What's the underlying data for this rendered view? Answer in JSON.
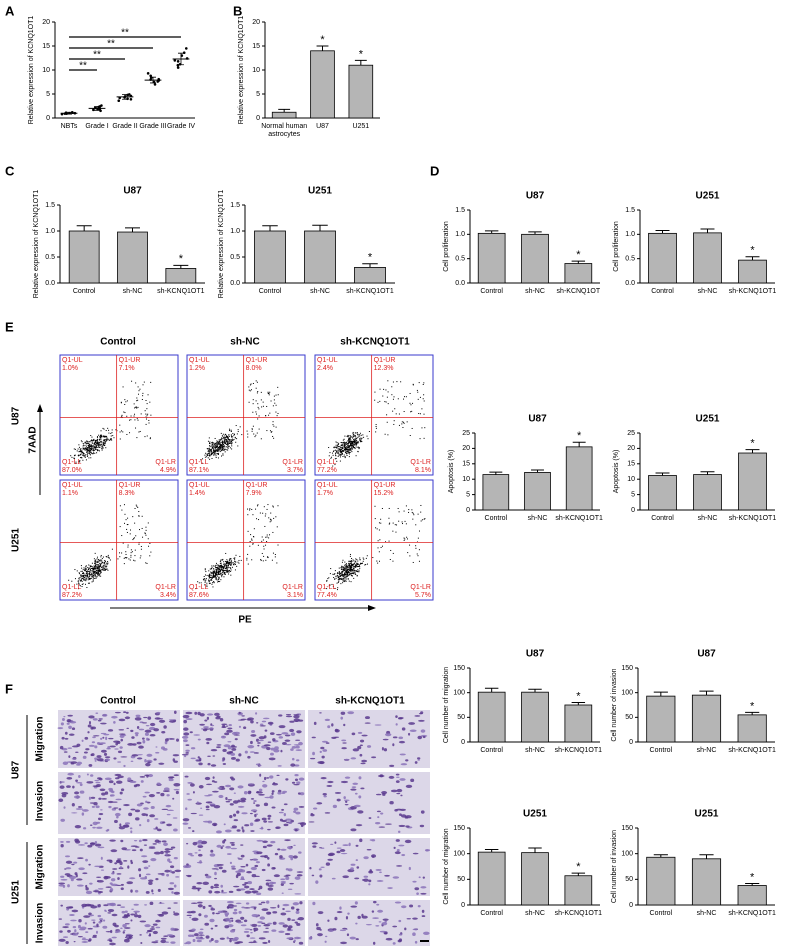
{
  "panels": [
    "A",
    "B",
    "C",
    "D",
    "E",
    "F"
  ],
  "chart_data": [
    {
      "type": "dot",
      "categories": [
        "NBTs",
        "Grade I",
        "Grade II",
        "Grade III",
        "Grade IV"
      ],
      "values": [
        1,
        2,
        4.4,
        7.9,
        12.3
      ],
      "errors": [
        0.2,
        0.4,
        0.5,
        0.6,
        1.2
      ],
      "points": [
        [
          0.8,
          1.0,
          1.1,
          0.9,
          1.2,
          1.0,
          0.9,
          1.1
        ],
        [
          1.5,
          1.8,
          2.0,
          2.3,
          2.6,
          1.7,
          2.1,
          2.4,
          1.9
        ],
        [
          3.6,
          4.0,
          4.3,
          4.6,
          4.9,
          4.2,
          4.5,
          3.9,
          4.8
        ],
        [
          7.0,
          7.5,
          7.8,
          8.1,
          8.4,
          8.8,
          7.6,
          8.0,
          9.3
        ],
        [
          10.5,
          11.2,
          11.8,
          12.4,
          13.0,
          13.6,
          14.5,
          12.0,
          11.0
        ]
      ],
      "ylim": [
        0,
        20
      ],
      "yticks": [
        0,
        5,
        10,
        15,
        20
      ],
      "ylabel": "Relative expression of KCNQ1OT1",
      "comparisons": [
        {
          "from": "NBTs",
          "to": "Grade I",
          "text": "**"
        },
        {
          "from": "NBTs",
          "to": "Grade II",
          "text": "**"
        },
        {
          "from": "NBTs",
          "to": "Grade III",
          "text": "**"
        },
        {
          "from": "NBTs",
          "to": "Grade IV",
          "text": "**"
        }
      ],
      "color": "#000000"
    },
    {
      "type": "bar",
      "categories": [
        "Normal human astrocytes",
        "U87",
        "U251"
      ],
      "values": [
        1.2,
        14,
        11
      ],
      "errors": [
        0.6,
        1,
        1
      ],
      "ylim": [
        0,
        20
      ],
      "yticks": [
        0,
        5,
        10,
        15,
        20
      ],
      "ylabel": "Relative expression of KCNQ1OT1",
      "annotations": [
        {
          "at": "U87",
          "text": "*"
        },
        {
          "at": "U251",
          "text": "*"
        }
      ],
      "color": "#b5b5b5"
    },
    {
      "type": "bar",
      "title": "U87",
      "categories": [
        "Control",
        "sh-NC",
        "sh-KCNQ1OT1"
      ],
      "values": [
        1.0,
        0.98,
        0.28
      ],
      "errors": [
        0.1,
        0.08,
        0.06
      ],
      "ylim": [
        0,
        1.5
      ],
      "yticks": [
        {
          "value": 0,
          "label": "0.0"
        },
        0.5,
        {
          "value": 1,
          "label": "1.0"
        },
        1.5
      ],
      "ylabel": "Relative expression of KCNQ1OT1",
      "annotations": [
        {
          "at": "sh-KCNQ1OT1",
          "text": "*"
        }
      ],
      "color": "#b5b5b5"
    },
    {
      "type": "bar",
      "title": "U251",
      "categories": [
        "Control",
        "sh-NC",
        "sh-KCNQ1OT1"
      ],
      "values": [
        1.0,
        1.0,
        0.3
      ],
      "errors": [
        0.1,
        0.11,
        0.07
      ],
      "ylim": [
        0,
        1.5
      ],
      "yticks": [
        {
          "value": 0,
          "label": "0.0"
        },
        0.5,
        {
          "value": 1,
          "label": "1.0"
        },
        1.5
      ],
      "ylabel": "Relative expression of KCNQ1OT1",
      "annotations": [
        {
          "at": "sh-KCNQ1OT1",
          "text": "*"
        }
      ],
      "color": "#b5b5b5"
    },
    {
      "type": "bar",
      "title": "U87",
      "categories": [
        "Control",
        "sh-NC",
        "sh-KCNQ1OT"
      ],
      "values": [
        1.02,
        1.0,
        0.4
      ],
      "errors": [
        0.05,
        0.05,
        0.05
      ],
      "ylim": [
        0,
        1.5
      ],
      "yticks": [
        {
          "value": 0,
          "label": "0.0"
        },
        0.5,
        {
          "value": 1,
          "label": "1.0"
        },
        1.5
      ],
      "ylabel": "Cell proliferation",
      "annotations": [
        {
          "at": "sh-KCNQ1OT",
          "text": "*"
        }
      ],
      "color": "#b5b5b5"
    },
    {
      "type": "bar",
      "title": "U251",
      "categories": [
        "Control",
        "sh-NC",
        "sh-KCNQ1OT1"
      ],
      "values": [
        1.02,
        1.03,
        0.47
      ],
      "errors": [
        0.06,
        0.08,
        0.07
      ],
      "ylim": [
        0,
        1.5
      ],
      "yticks": [
        {
          "value": 0,
          "label": "0.0"
        },
        0.5,
        {
          "value": 1,
          "label": "1.0"
        },
        1.5
      ],
      "ylabel": "Cell proliferation",
      "annotations": [
        {
          "at": "sh-KCNQ1OT1",
          "text": "*"
        }
      ],
      "color": "#b5b5b5"
    },
    {
      "type": "bar",
      "title": "U87",
      "categories": [
        "Control",
        "sh-NC",
        "sh-KCNQ1OT1"
      ],
      "values": [
        11.5,
        12.2,
        20.5
      ],
      "errors": [
        0.8,
        0.8,
        1.5
      ],
      "ylim": [
        0,
        25
      ],
      "yticks": [
        0,
        5,
        10,
        15,
        20,
        25
      ],
      "ylabel": "Apoptosis (%)",
      "annotations": [
        {
          "at": "sh-KCNQ1OT1",
          "text": "*"
        }
      ],
      "color": "#b5b5b5"
    },
    {
      "type": "bar",
      "title": "U251",
      "categories": [
        "Control",
        "sh-NC",
        "sh-KCNQ1OT1"
      ],
      "values": [
        11.2,
        11.5,
        18.5
      ],
      "errors": [
        0.8,
        0.9,
        1.1
      ],
      "ylim": [
        0,
        25
      ],
      "yticks": [
        0,
        5,
        10,
        15,
        20,
        25
      ],
      "ylabel": "Apoptosis (%)",
      "annotations": [
        {
          "at": "sh-KCNQ1OT1",
          "text": "*"
        }
      ],
      "color": "#b5b5b5"
    },
    {
      "type": "bar",
      "title": "U87",
      "categories": [
        "Control",
        "sh-NC",
        "sh-KCNQ1OT1"
      ],
      "values": [
        101,
        101,
        75
      ],
      "errors": [
        8,
        6,
        5
      ],
      "ylim": [
        0,
        150
      ],
      "yticks": [
        0,
        50,
        100,
        150
      ],
      "ylabel": "Cell number of migration",
      "annotations": [
        {
          "at": "sh-KCNQ1OT1",
          "text": "*"
        }
      ],
      "color": "#b5b5b5"
    },
    {
      "type": "bar",
      "title": "U87",
      "categories": [
        "Control",
        "sh-NC",
        "sh-KCNQ1OT1"
      ],
      "values": [
        93,
        95,
        55
      ],
      "errors": [
        8,
        8,
        5
      ],
      "ylim": [
        0,
        150
      ],
      "yticks": [
        0,
        50,
        100,
        150
      ],
      "ylabel": "Cell number of invasion",
      "annotations": [
        {
          "at": "sh-KCNQ1OT1",
          "text": "*"
        }
      ],
      "color": "#b5b5b5"
    },
    {
      "type": "bar",
      "title": "U251",
      "categories": [
        "Control",
        "sh-NC",
        "sh-KCNQ1OT1"
      ],
      "values": [
        103,
        102,
        57
      ],
      "errors": [
        5,
        9,
        5
      ],
      "ylim": [
        0,
        150
      ],
      "yticks": [
        0,
        50,
        100,
        150
      ],
      "ylabel": "Cell number of migration",
      "annotations": [
        {
          "at": "sh-KCNQ1OT1",
          "text": "*"
        }
      ],
      "color": "#b5b5b5"
    },
    {
      "type": "bar",
      "title": "U251",
      "categories": [
        "Control",
        "sh-NC",
        "sh-KCNQ1OT1"
      ],
      "values": [
        93,
        90,
        38
      ],
      "errors": [
        5,
        8,
        4
      ],
      "ylim": [
        0,
        150
      ],
      "yticks": [
        0,
        50,
        100,
        150
      ],
      "ylabel": "Cell number of invasion",
      "annotations": [
        {
          "at": "sh-KCNQ1OT1",
          "text": "*"
        }
      ],
      "color": "#b5b5b5"
    }
  ],
  "flow": {
    "columns": [
      "Control",
      "sh-NC",
      "sh-KCNQ1OT1"
    ],
    "rows": [
      "U87",
      "U251"
    ],
    "y_axis": "7AAD",
    "x_axis": "PE",
    "quadrants": [
      "Q1-UL",
      "Q1-UR",
      "Q1-LL",
      "Q1-LR"
    ],
    "percent": [
      [
        [
          "1.0%",
          "7.1%",
          "87.0%",
          "4.9%"
        ],
        [
          "1.2%",
          "8.0%",
          "87.1%",
          "3.7%"
        ],
        [
          "2.4%",
          "12.3%",
          "77.2%",
          "8.1%"
        ]
      ],
      [
        [
          "1.1%",
          "8.3%",
          "87.2%",
          "3.4%"
        ],
        [
          "1.4%",
          "7.9%",
          "87.6%",
          "3.1%"
        ],
        [
          "1.7%",
          "15.2%",
          "77.4%",
          "5.7%"
        ]
      ]
    ]
  },
  "transwell": {
    "columns": [
      "Control",
      "sh-NC",
      "sh-KCNQ1OT1"
    ],
    "groups": [
      "U87",
      "U251"
    ],
    "rows": [
      "Migration",
      "Invasion"
    ]
  }
}
